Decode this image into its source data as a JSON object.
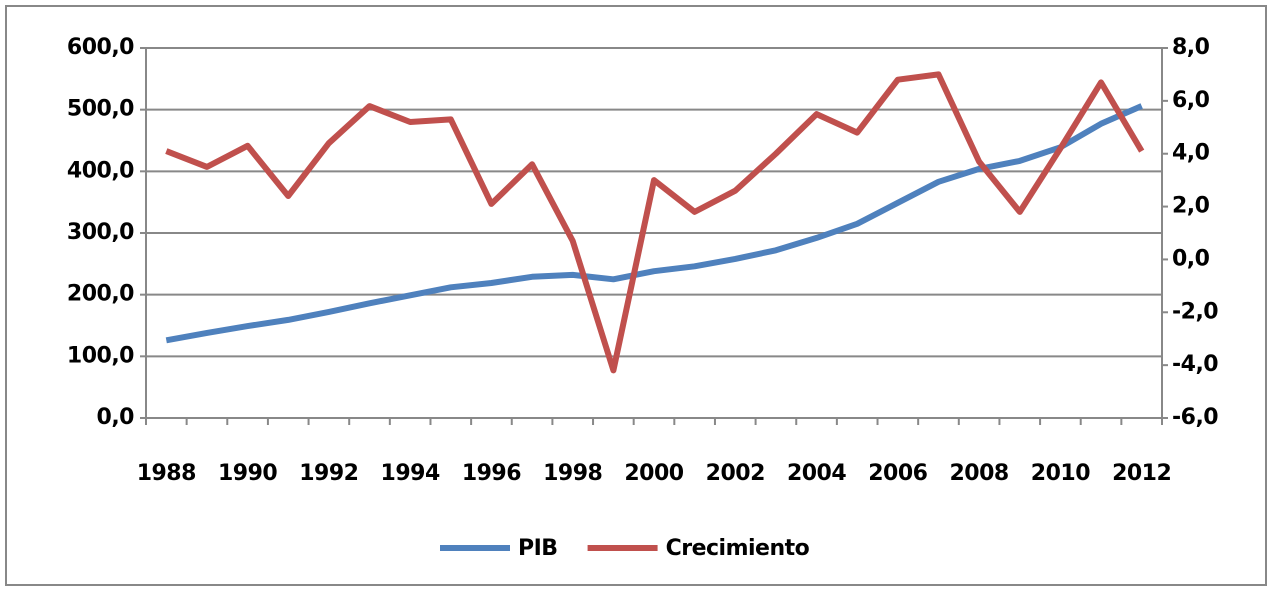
{
  "chart_data": {
    "type": "line",
    "categories": [
      "1988",
      null,
      "1990",
      null,
      "1992",
      null,
      "1994",
      null,
      "1996",
      null,
      "1998",
      null,
      "2000",
      null,
      "2002",
      null,
      "2004",
      null,
      "2006",
      null,
      "2008",
      null,
      "2010",
      null,
      "2012"
    ],
    "series": [
      {
        "name": "PIB",
        "color": "#4f81bd",
        "values": [
          126,
          138,
          149,
          159,
          172,
          186,
          199,
          212,
          219,
          229,
          232,
          225,
          238,
          246,
          258,
          272,
          292,
          315,
          349,
          383,
          404,
          417,
          439,
          477,
          506
        ]
      },
      {
        "name": "Crecimiento",
        "color": "#c0504d",
        "axis": "y2",
        "values": [
          4.1,
          3.5,
          4.3,
          2.4,
          4.4,
          5.8,
          5.2,
          5.3,
          2.1,
          3.6,
          0.7,
          -4.2,
          3.0,
          1.8,
          2.6,
          4.0,
          5.5,
          4.8,
          6.8,
          7.0,
          3.7,
          1.8,
          4.2,
          6.7,
          4.1
        ]
      }
    ],
    "ylim": [
      0,
      600
    ],
    "yticks": [
      {
        "value": 0,
        "label": "0,0"
      },
      {
        "value": 100,
        "label": "100,0"
      },
      {
        "value": 200,
        "label": "200,0"
      },
      {
        "value": 300,
        "label": "300,0"
      },
      {
        "value": 400,
        "label": "400,0"
      },
      {
        "value": 500,
        "label": "500,0"
      },
      {
        "value": 600,
        "label": "600,0"
      }
    ],
    "y2lim": [
      -6,
      8
    ],
    "y2ticks": [
      {
        "value": -6,
        "label": "-6,0"
      },
      {
        "value": -4,
        "label": "-4,0"
      },
      {
        "value": -2,
        "label": "-2,0"
      },
      {
        "value": 0,
        "label": "0,0"
      },
      {
        "value": 2,
        "label": "2,0"
      },
      {
        "value": 4,
        "label": "4,0"
      },
      {
        "value": 6,
        "label": "6,0"
      },
      {
        "value": 8,
        "label": "8,0"
      }
    ],
    "grid": true,
    "legend": "bottom"
  }
}
